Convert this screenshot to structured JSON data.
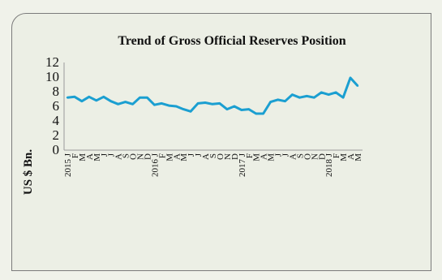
{
  "chart_data": {
    "type": "line",
    "title": "Trend of Gross Official Reserves Position",
    "xlabel": "",
    "ylabel": "US $ Bn.",
    "ylim": [
      0,
      12
    ],
    "yticks": [
      "0",
      "2",
      "4",
      "6",
      "8",
      "10",
      "12"
    ],
    "grid": false,
    "legend": "none",
    "line_color": "#1b9fd1",
    "x_tick_labels": [
      "2015 J",
      "F",
      "M",
      "A",
      "M",
      "J",
      "J",
      "A",
      "S",
      "O",
      "N",
      "D",
      "2016 J",
      "F",
      "M",
      "A",
      "M",
      "J",
      "J",
      "A",
      "S",
      "O",
      "N",
      "D",
      "2017 J",
      "F",
      "M",
      "A",
      "M",
      "J",
      "J",
      "A",
      "S",
      "O",
      "N",
      "D",
      "2018 J",
      "F",
      "M",
      "A",
      "M"
    ],
    "series": [
      {
        "values": [
          7.2,
          7.3,
          6.7,
          7.3,
          6.8,
          7.3,
          6.7,
          6.3,
          6.6,
          6.3,
          7.2,
          7.2,
          6.2,
          6.4,
          6.1,
          6.0,
          5.6,
          5.3,
          6.4,
          6.5,
          6.3,
          6.4,
          5.6,
          6.0,
          5.5,
          5.6,
          5.0,
          5.0,
          6.6,
          6.9,
          6.7,
          7.6,
          7.2,
          7.4,
          7.2,
          7.9,
          7.6,
          7.9,
          7.2,
          9.9,
          8.8
        ]
      }
    ]
  }
}
